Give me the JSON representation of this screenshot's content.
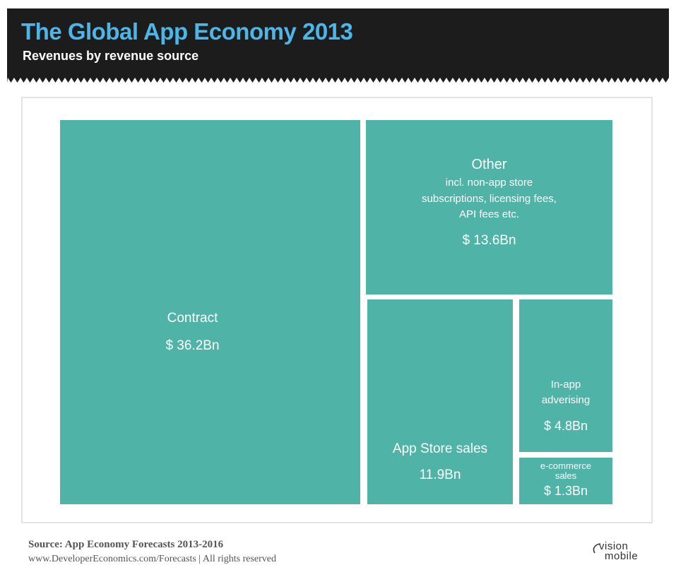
{
  "header": {
    "title": "The Global App Economy 2013",
    "subtitle": "Revenues by revenue source",
    "background_color": "#1c1c1c",
    "title_color": "#4cb6e8"
  },
  "chart_data": {
    "type": "treemap",
    "tile_color": "#50b3a8",
    "items": [
      {
        "key": "contract",
        "label": "Contract",
        "value_label": "$ 36.2Bn",
        "value": 36.2
      },
      {
        "key": "other",
        "label": "Other",
        "description": [
          "incl. non-app store",
          "subscriptions, licensing fees,",
          "API fees etc."
        ],
        "value_label": "$ 13.6Bn",
        "value": 13.6
      },
      {
        "key": "app_store_sales",
        "label": "App Store sales",
        "value_label": "11.9Bn",
        "value": 11.9
      },
      {
        "key": "in_app_advertising",
        "label": [
          "In-app",
          "adverising"
        ],
        "value_label": "$ 4.8Bn",
        "value": 4.8
      },
      {
        "key": "ecommerce_sales",
        "label": [
          "e-commerce",
          "sales"
        ],
        "value_label": "$ 1.3Bn",
        "value": 1.3
      }
    ]
  },
  "footer": {
    "source": "Source:  App Economy Forecasts 2013-2016",
    "url": "www.DeveloperEconomics.com/Forecasts | All rights reserved",
    "brand_line1": "vision",
    "brand_line2": "mobile"
  }
}
